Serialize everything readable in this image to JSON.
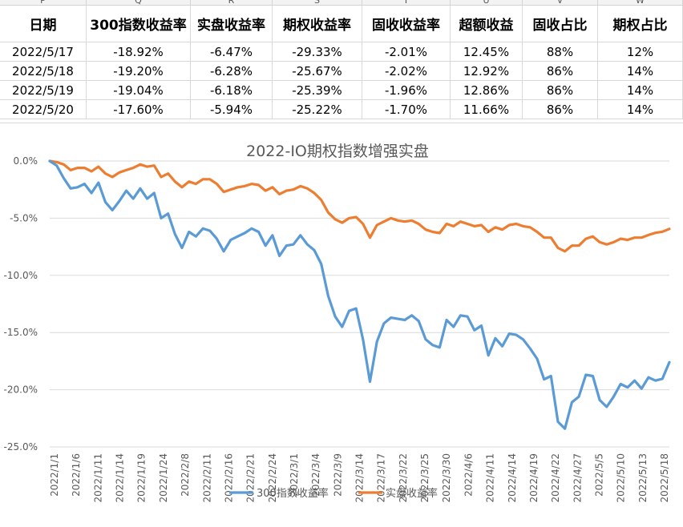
{
  "spreadsheet": {
    "column_letters": [
      "P",
      "Q",
      "R",
      "S",
      "T",
      "U",
      "V",
      "W"
    ],
    "headers": [
      "日期",
      "300指数收益率",
      "实盘收益率",
      "期权收益率",
      "固收收益率",
      "超额收益",
      "固收占比",
      "期权占比"
    ],
    "rows": [
      [
        "2022/5/17",
        "-18.92%",
        "-6.47%",
        "-29.33%",
        "-2.01%",
        "12.45%",
        "88%",
        "12%"
      ],
      [
        "2022/5/18",
        "-19.20%",
        "-6.28%",
        "-25.67%",
        "-2.02%",
        "12.92%",
        "86%",
        "14%"
      ],
      [
        "2022/5/19",
        "-19.04%",
        "-6.18%",
        "-25.39%",
        "-1.96%",
        "12.86%",
        "86%",
        "14%"
      ],
      [
        "2022/5/20",
        "-17.60%",
        "-5.94%",
        "-25.22%",
        "-1.70%",
        "11.66%",
        "86%",
        "14%"
      ]
    ]
  },
  "chart_data": {
    "type": "line",
    "title": "2022-IO期权指数增强实盘",
    "ylim": [
      -25,
      0
    ],
    "y_ticks": [
      "0.0%",
      "-5.0%",
      "-10.0%",
      "-15.0%",
      "-20.0%",
      "-25.0%"
    ],
    "y_tick_values": [
      0,
      -5,
      -10,
      -15,
      -20,
      -25
    ],
    "x_tick_labels": [
      "2022/1/1",
      "2022/1/6",
      "2022/1/11",
      "2022/1/14",
      "2022/1/19",
      "2022/1/24",
      "2022/2/8",
      "2022/2/11",
      "2022/2/16",
      "2022/2/21",
      "2022/2/24",
      "2022/3/1",
      "2022/3/4",
      "2022/3/9",
      "2022/3/14",
      "2022/3/17",
      "2022/3/22",
      "2022/3/25",
      "2022/3/30",
      "2022/4/6",
      "2022/4/11",
      "2022/4/14",
      "2022/4/19",
      "2022/4/22",
      "2022/4/27",
      "2022/5/5",
      "2022/5/10",
      "2022/5/13",
      "2022/5/18"
    ],
    "grid": true,
    "legend_position": "bottom",
    "series": [
      {
        "name": "300指数收益率",
        "color": "#5b9bd5",
        "values": [
          0,
          -0.4,
          -1.5,
          -2.4,
          -2.3,
          -2.0,
          -2.8,
          -1.9,
          -3.6,
          -4.3,
          -3.5,
          -2.6,
          -3.3,
          -2.4,
          -3.3,
          -2.8,
          -5.0,
          -4.6,
          -6.4,
          -7.6,
          -6.2,
          -6.6,
          -5.9,
          -6.1,
          -6.8,
          -7.9,
          -6.9,
          -6.6,
          -6.3,
          -5.9,
          -6.2,
          -7.4,
          -6.5,
          -8.3,
          -7.4,
          -7.3,
          -6.5,
          -7.3,
          -7.8,
          -9.0,
          -11.8,
          -13.6,
          -14.5,
          -13.1,
          -12.9,
          -15.6,
          -19.3,
          -15.8,
          -14.2,
          -13.7,
          -13.8,
          -13.9,
          -13.5,
          -14.0,
          -15.6,
          -16.1,
          -16.3,
          -13.9,
          -14.5,
          -13.5,
          -13.6,
          -14.8,
          -14.4,
          -17.0,
          -15.5,
          -16.2,
          -15.1,
          -15.2,
          -15.6,
          -16.4,
          -17.3,
          -19.1,
          -18.8,
          -22.8,
          -23.4,
          -21.1,
          -20.6,
          -18.7,
          -18.8,
          -20.9,
          -21.5,
          -20.6,
          -19.5,
          -19.8,
          -19.2,
          -19.9,
          -18.92,
          -19.2,
          -19.04,
          -17.6
        ]
      },
      {
        "name": "实盘收益率",
        "color": "#ed7d31",
        "values": [
          0,
          -0.1,
          -0.3,
          -0.8,
          -0.6,
          -0.6,
          -0.9,
          -0.5,
          -1.1,
          -1.4,
          -1.0,
          -0.8,
          -0.6,
          -0.3,
          -0.5,
          -0.4,
          -1.4,
          -1.1,
          -1.8,
          -2.3,
          -1.8,
          -2.0,
          -1.6,
          -1.6,
          -2.0,
          -2.7,
          -2.5,
          -2.3,
          -2.2,
          -2.0,
          -2.1,
          -2.6,
          -2.3,
          -2.9,
          -2.6,
          -2.5,
          -2.2,
          -2.4,
          -2.8,
          -3.4,
          -4.5,
          -5.1,
          -5.4,
          -5.0,
          -4.9,
          -5.5,
          -6.7,
          -5.6,
          -5.3,
          -5.0,
          -5.2,
          -5.3,
          -5.2,
          -5.5,
          -6.0,
          -6.2,
          -6.3,
          -5.5,
          -5.7,
          -5.3,
          -5.5,
          -5.7,
          -5.6,
          -6.2,
          -5.8,
          -6.0,
          -5.6,
          -5.5,
          -5.7,
          -5.8,
          -6.2,
          -6.7,
          -6.7,
          -7.6,
          -7.9,
          -7.4,
          -7.4,
          -6.8,
          -6.6,
          -7.1,
          -7.3,
          -7.1,
          -6.8,
          -6.9,
          -6.7,
          -6.7,
          -6.47,
          -6.28,
          -6.18,
          -5.94
        ]
      }
    ]
  }
}
